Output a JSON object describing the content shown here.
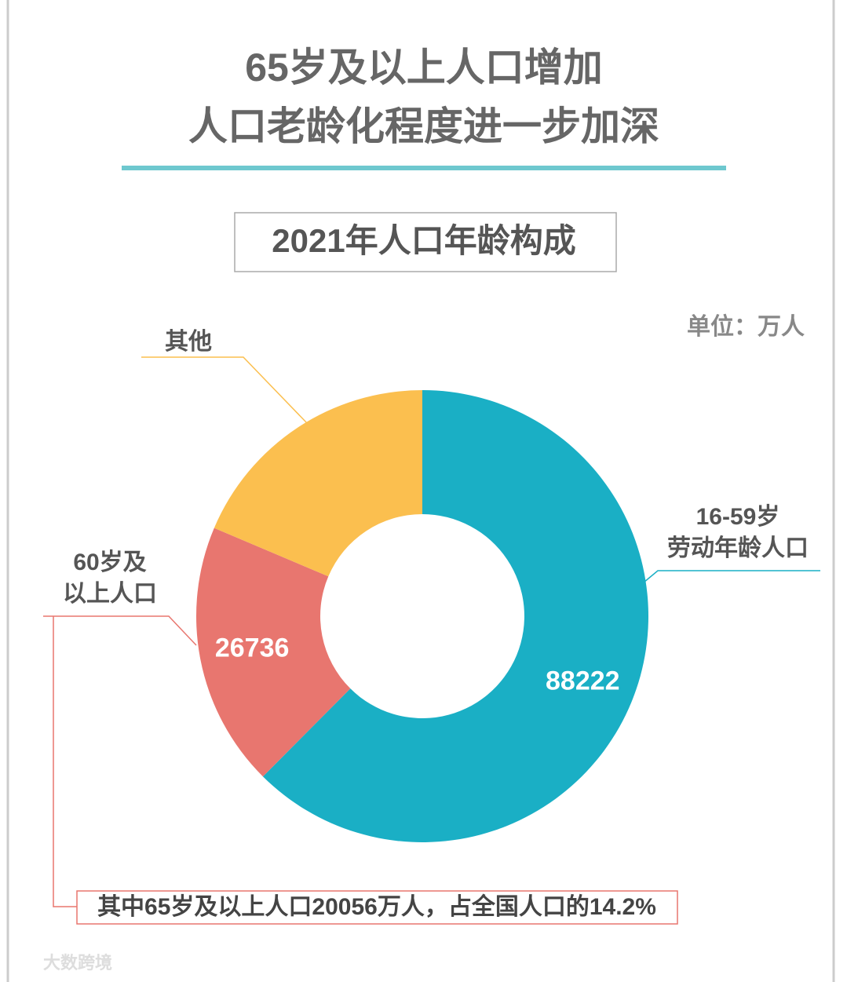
{
  "chart_data": {
    "type": "donut",
    "title": [
      "65岁及以上人口增加",
      "人口老龄化程度进一步加深"
    ],
    "subtitle": "2021年人口年龄构成",
    "unit": "单位：万人",
    "categories": [
      [
        "16-59岁",
        "劳动年龄人口"
      ],
      [
        "60岁及",
        "以上人口"
      ],
      [
        "其他"
      ]
    ],
    "values": [
      88222,
      26736,
      26300
    ],
    "colors": [
      "#1aafc5",
      "#e8766f",
      "#fbbf4f"
    ],
    "annotation": "其中65岁及以上人口20056万人，占全国人口的14.2%",
    "watermark": "大数跨境"
  }
}
